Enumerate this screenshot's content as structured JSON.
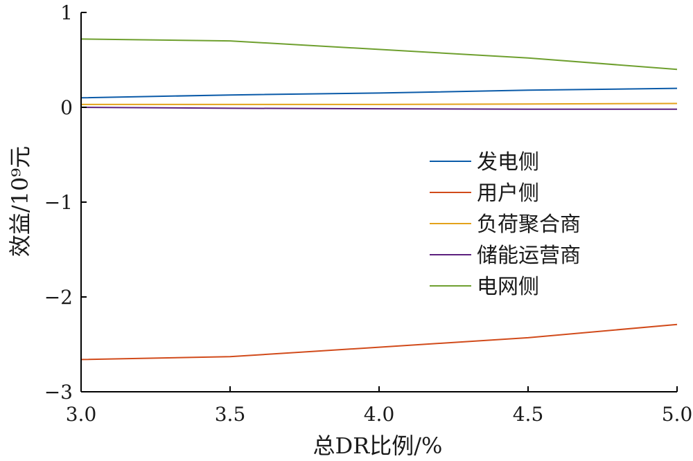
{
  "chart_data": {
    "type": "line",
    "title": "",
    "xlabel": "总DR比例/%",
    "ylabel": "效益/10⁹元",
    "xlim": [
      3.0,
      5.0
    ],
    "ylim": [
      -3,
      1
    ],
    "x_ticks": [
      3.0,
      3.5,
      4.0,
      4.5,
      5.0
    ],
    "x_tick_labels": [
      "3.0",
      "3.5",
      "4.0",
      "4.5",
      "5.0"
    ],
    "y_ticks": [
      1,
      0,
      -1,
      -2,
      -3
    ],
    "y_tick_labels": [
      "1",
      "0",
      "−1",
      "−2",
      "−3"
    ],
    "grid": false,
    "legend_position": "right-center",
    "x": [
      3.0,
      3.5,
      4.0,
      4.5,
      5.0
    ],
    "series": [
      {
        "name": "发电侧",
        "color": "#0a5aa8",
        "values": [
          0.1,
          0.13,
          0.15,
          0.18,
          0.2
        ]
      },
      {
        "name": "用户侧",
        "color": "#d14a1a",
        "values": [
          -2.66,
          -2.63,
          -2.53,
          -2.43,
          -2.29
        ]
      },
      {
        "name": "负荷聚合商",
        "color": "#e3a21a",
        "values": [
          0.03,
          0.03,
          0.03,
          0.035,
          0.04
        ]
      },
      {
        "name": "储能运营商",
        "color": "#5b1f7d",
        "values": [
          0.0,
          -0.01,
          -0.015,
          -0.02,
          -0.02
        ]
      },
      {
        "name": "电网侧",
        "color": "#6e9f2e",
        "values": [
          0.72,
          0.7,
          0.61,
          0.52,
          0.4
        ]
      }
    ]
  }
}
